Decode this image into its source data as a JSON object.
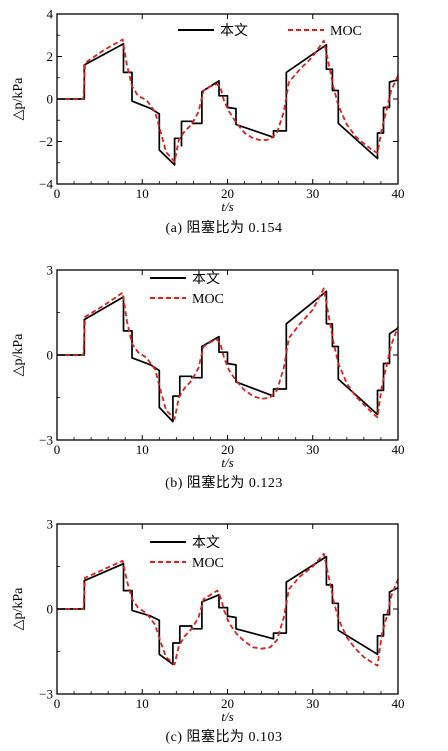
{
  "chart_data": [
    {
      "type": "line",
      "caption": "(a) 阻塞比为 0.154",
      "xlabel": "t/s",
      "ylabel": "△p/kPa",
      "xlim": [
        0,
        40
      ],
      "ylim": [
        -4,
        4
      ],
      "xticks": [
        "0",
        "10",
        "20",
        "30",
        "40"
      ],
      "yticks": [
        "-4",
        "-2",
        "0",
        "2",
        "4"
      ],
      "legend_position": "top-right",
      "series": [
        {
          "name": "本文",
          "color": "#000000",
          "style": "solid",
          "points": [
            [
              0,
              0
            ],
            [
              3.2,
              0
            ],
            [
              3.2,
              1.6
            ],
            [
              7.8,
              2.6
            ],
            [
              7.8,
              1.25
            ],
            [
              8.8,
              1.25
            ],
            [
              8.8,
              -0.1
            ],
            [
              11,
              -0.45
            ],
            [
              12,
              -0.7
            ],
            [
              12,
              -2.4
            ],
            [
              13.8,
              -3.1
            ],
            [
              13.8,
              -1.85
            ],
            [
              14.6,
              -1.85
            ],
            [
              14.6,
              -2.2
            ],
            [
              14.6,
              -1.05
            ],
            [
              15.9,
              -1.05
            ],
            [
              15.9,
              -1.15
            ],
            [
              17,
              -1.15
            ],
            [
              17,
              0.35
            ],
            [
              19,
              0.85
            ],
            [
              19,
              0.15
            ],
            [
              20,
              0.15
            ],
            [
              20,
              -0.4
            ],
            [
              21,
              -0.45
            ],
            [
              21,
              -1.2
            ],
            [
              25.4,
              -1.8
            ],
            [
              25.4,
              -1.5
            ],
            [
              26.9,
              -1.5
            ],
            [
              26.9,
              1.25
            ],
            [
              31.6,
              2.55
            ],
            [
              31.6,
              1.4
            ],
            [
              32.3,
              1.4
            ],
            [
              32.3,
              0.4
            ],
            [
              33,
              0.4
            ],
            [
              33,
              -1.15
            ],
            [
              37.6,
              -2.8
            ],
            [
              37.6,
              -1.6
            ],
            [
              38.3,
              -1.6
            ],
            [
              38.3,
              -0.4
            ],
            [
              39,
              -0.4
            ],
            [
              39,
              0.8
            ],
            [
              40,
              0.9
            ]
          ]
        },
        {
          "name": "MOC",
          "color": "#e0201b",
          "style": "dashed",
          "points": [
            [
              0,
              0
            ],
            [
              3.1,
              0
            ],
            [
              3.3,
              1.7
            ],
            [
              5.5,
              2.3
            ],
            [
              7.7,
              2.8
            ],
            [
              8.2,
              1.6
            ],
            [
              8.8,
              0.6
            ],
            [
              9.5,
              0.15
            ],
            [
              10.5,
              -0.05
            ],
            [
              11.5,
              -0.6
            ],
            [
              12.2,
              -1.6
            ],
            [
              12.8,
              -2.5
            ],
            [
              13.8,
              -2.95
            ],
            [
              14.3,
              -1.9
            ],
            [
              15,
              -1.5
            ],
            [
              15.8,
              -1.2
            ],
            [
              16.6,
              -0.6
            ],
            [
              17.2,
              0.4
            ],
            [
              18,
              0.6
            ],
            [
              18.8,
              0.7
            ],
            [
              19.2,
              0.5
            ],
            [
              19.6,
              -0.1
            ],
            [
              20.2,
              -0.6
            ],
            [
              21,
              -1.1
            ],
            [
              22,
              -1.6
            ],
            [
              23,
              -1.85
            ],
            [
              24,
              -1.95
            ],
            [
              25,
              -1.9
            ],
            [
              25.8,
              -1.6
            ],
            [
              26.6,
              -0.6
            ],
            [
              27.2,
              0.8
            ],
            [
              28.5,
              1.4
            ],
            [
              30,
              2.0
            ],
            [
              31.3,
              2.75
            ],
            [
              31.8,
              1.8
            ],
            [
              32.4,
              0.6
            ],
            [
              33,
              -0.3
            ],
            [
              34,
              -1.2
            ],
            [
              35,
              -1.75
            ],
            [
              36,
              -2.1
            ],
            [
              37,
              -2.4
            ],
            [
              37.6,
              -2.55
            ],
            [
              38.1,
              -1.4
            ],
            [
              38.6,
              -0.6
            ],
            [
              39.2,
              0.4
            ],
            [
              40,
              1.1
            ]
          ]
        }
      ]
    },
    {
      "type": "line",
      "caption": "(b) 阻塞比为 0.123",
      "xlabel": "t/s",
      "ylabel": "△p/kPa",
      "xlim": [
        0,
        40
      ],
      "ylim": [
        -3,
        3
      ],
      "xticks": [
        "0",
        "10",
        "20",
        "30",
        "40"
      ],
      "yticks": [
        "-3",
        "0",
        "3"
      ],
      "legend_position": "top-left",
      "series": [
        {
          "name": "本文",
          "color": "#000000",
          "style": "solid",
          "points": [
            [
              0,
              0
            ],
            [
              3.2,
              0
            ],
            [
              3.2,
              1.25
            ],
            [
              7.8,
              2.05
            ],
            [
              7.8,
              0.85
            ],
            [
              8.8,
              0.85
            ],
            [
              8.8,
              -0.1
            ],
            [
              11,
              -0.35
            ],
            [
              12,
              -0.55
            ],
            [
              12,
              -1.85
            ],
            [
              13.6,
              -2.35
            ],
            [
              13.6,
              -1.45
            ],
            [
              14.4,
              -1.45
            ],
            [
              14.4,
              -0.75
            ],
            [
              15.8,
              -0.75
            ],
            [
              15.8,
              -0.8
            ],
            [
              17,
              -0.8
            ],
            [
              17,
              0.3
            ],
            [
              19,
              0.65
            ],
            [
              19,
              0.1
            ],
            [
              20,
              0.1
            ],
            [
              20,
              -0.3
            ],
            [
              21,
              -0.35
            ],
            [
              21,
              -0.95
            ],
            [
              25.4,
              -1.45
            ],
            [
              25.4,
              -1.2
            ],
            [
              26.9,
              -1.2
            ],
            [
              26.9,
              1.1
            ],
            [
              31.6,
              2.25
            ],
            [
              31.6,
              1.1
            ],
            [
              32.3,
              1.1
            ],
            [
              32.3,
              0.3
            ],
            [
              33,
              0.3
            ],
            [
              33,
              -0.85
            ],
            [
              37.6,
              -2.1
            ],
            [
              37.6,
              -1.25
            ],
            [
              38.3,
              -1.25
            ],
            [
              38.3,
              -0.3
            ],
            [
              39,
              -0.3
            ],
            [
              39,
              0.75
            ],
            [
              40,
              0.95
            ]
          ]
        },
        {
          "name": "MOC",
          "color": "#e0201b",
          "style": "dashed",
          "points": [
            [
              0,
              0
            ],
            [
              3.1,
              0
            ],
            [
              3.3,
              1.35
            ],
            [
              5.5,
              1.75
            ],
            [
              7.7,
              2.2
            ],
            [
              8.2,
              1.2
            ],
            [
              8.8,
              0.4
            ],
            [
              9.5,
              0.1
            ],
            [
              10.5,
              -0.1
            ],
            [
              11.5,
              -0.5
            ],
            [
              12.2,
              -1.3
            ],
            [
              12.8,
              -1.95
            ],
            [
              13.8,
              -2.25
            ],
            [
              14.3,
              -1.5
            ],
            [
              15,
              -1.15
            ],
            [
              15.8,
              -0.9
            ],
            [
              16.6,
              -0.45
            ],
            [
              17.2,
              0.3
            ],
            [
              18,
              0.45
            ],
            [
              18.8,
              0.55
            ],
            [
              19.2,
              0.35
            ],
            [
              19.6,
              -0.1
            ],
            [
              20.2,
              -0.55
            ],
            [
              21,
              -0.9
            ],
            [
              22,
              -1.25
            ],
            [
              23,
              -1.45
            ],
            [
              24,
              -1.55
            ],
            [
              25,
              -1.5
            ],
            [
              25.8,
              -1.25
            ],
            [
              26.6,
              -0.45
            ],
            [
              27.2,
              0.6
            ],
            [
              28.5,
              1.1
            ],
            [
              30,
              1.6
            ],
            [
              31.3,
              2.35
            ],
            [
              31.8,
              1.5
            ],
            [
              32.4,
              0.5
            ],
            [
              33,
              -0.3
            ],
            [
              34,
              -1.0
            ],
            [
              35,
              -1.45
            ],
            [
              36,
              -1.75
            ],
            [
              37,
              -2.05
            ],
            [
              37.6,
              -2.2
            ],
            [
              38.1,
              -1.1
            ],
            [
              38.6,
              -0.45
            ],
            [
              39.2,
              0.35
            ],
            [
              40,
              1.0
            ]
          ]
        }
      ]
    },
    {
      "type": "line",
      "caption": "(c) 阻塞比为 0.103",
      "xlabel": "t/s",
      "ylabel": "△p/kPa",
      "xlim": [
        0,
        40
      ],
      "ylim": [
        -3,
        3
      ],
      "xticks": [
        "0",
        "10",
        "20",
        "30",
        "40"
      ],
      "yticks": [
        "-3",
        "0",
        "3"
      ],
      "legend_position": "top-left",
      "series": [
        {
          "name": "本文",
          "color": "#000000",
          "style": "solid",
          "points": [
            [
              0,
              0
            ],
            [
              3.2,
              0
            ],
            [
              3.2,
              1.0
            ],
            [
              7.8,
              1.6
            ],
            [
              7.8,
              0.65
            ],
            [
              8.8,
              0.65
            ],
            [
              8.8,
              -0.05
            ],
            [
              11,
              -0.25
            ],
            [
              12,
              -0.4
            ],
            [
              12,
              -1.6
            ],
            [
              13.6,
              -1.95
            ],
            [
              13.6,
              -1.2
            ],
            [
              14.4,
              -1.2
            ],
            [
              14.4,
              -0.6
            ],
            [
              15.8,
              -0.6
            ],
            [
              15.8,
              -0.7
            ],
            [
              17,
              -0.7
            ],
            [
              17,
              0.25
            ],
            [
              19,
              0.5
            ],
            [
              19,
              0.05
            ],
            [
              20,
              0.05
            ],
            [
              20,
              -0.25
            ],
            [
              21,
              -0.3
            ],
            [
              21,
              -0.7
            ],
            [
              25.4,
              -1.05
            ],
            [
              25.4,
              -0.85
            ],
            [
              26.9,
              -0.85
            ],
            [
              26.9,
              0.95
            ],
            [
              31.6,
              1.85
            ],
            [
              31.6,
              0.85
            ],
            [
              32.3,
              0.85
            ],
            [
              32.3,
              0.2
            ],
            [
              33,
              0.2
            ],
            [
              33,
              -0.75
            ],
            [
              37.6,
              -1.6
            ],
            [
              37.6,
              -0.95
            ],
            [
              38.3,
              -0.95
            ],
            [
              38.3,
              -0.2
            ],
            [
              39,
              -0.2
            ],
            [
              39,
              0.6
            ],
            [
              40,
              0.75
            ]
          ]
        },
        {
          "name": "MOC",
          "color": "#e0201b",
          "style": "dashed",
          "points": [
            [
              0,
              0
            ],
            [
              3.1,
              0
            ],
            [
              3.3,
              1.1
            ],
            [
              5.5,
              1.4
            ],
            [
              7.7,
              1.7
            ],
            [
              8.2,
              1.0
            ],
            [
              8.8,
              0.35
            ],
            [
              9.5,
              0.05
            ],
            [
              10.5,
              -0.15
            ],
            [
              11.5,
              -0.55
            ],
            [
              12.2,
              -1.2
            ],
            [
              12.8,
              -1.7
            ],
            [
              13.8,
              -1.95
            ],
            [
              14.3,
              -1.3
            ],
            [
              15,
              -0.95
            ],
            [
              15.8,
              -0.7
            ],
            [
              16.6,
              -0.3
            ],
            [
              17.2,
              0.35
            ],
            [
              18,
              0.5
            ],
            [
              18.8,
              0.65
            ],
            [
              19.2,
              0.4
            ],
            [
              19.6,
              -0.05
            ],
            [
              20.2,
              -0.5
            ],
            [
              21,
              -0.85
            ],
            [
              22,
              -1.15
            ],
            [
              23,
              -1.35
            ],
            [
              24,
              -1.4
            ],
            [
              25,
              -1.35
            ],
            [
              25.8,
              -1.1
            ],
            [
              26.6,
              -0.3
            ],
            [
              27.2,
              0.7
            ],
            [
              28.5,
              1.15
            ],
            [
              30,
              1.5
            ],
            [
              31.3,
              1.95
            ],
            [
              31.8,
              1.25
            ],
            [
              32.4,
              0.35
            ],
            [
              33,
              -0.35
            ],
            [
              34,
              -1.0
            ],
            [
              35,
              -1.4
            ],
            [
              36,
              -1.7
            ],
            [
              37,
              -1.9
            ],
            [
              37.6,
              -2.0
            ],
            [
              38.1,
              -0.9
            ],
            [
              38.6,
              -0.35
            ],
            [
              39.2,
              0.45
            ],
            [
              40,
              1.05
            ]
          ]
        }
      ]
    }
  ]
}
